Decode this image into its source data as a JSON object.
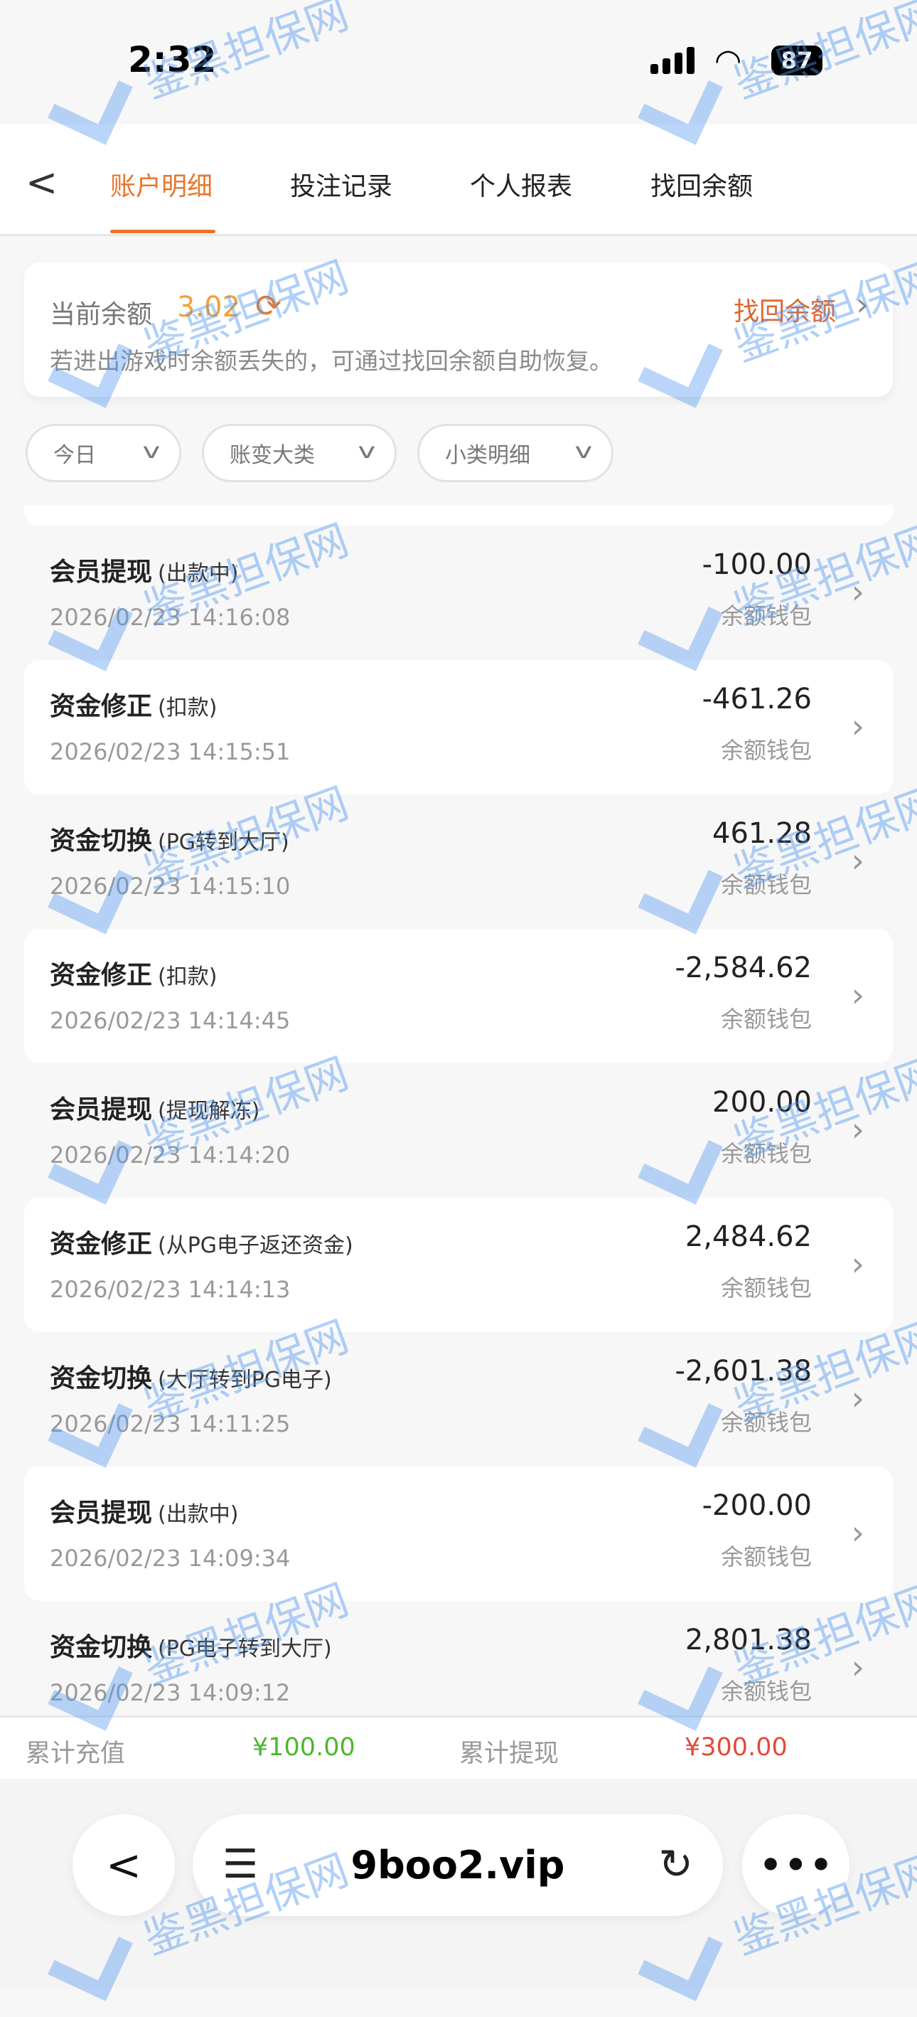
{
  "status_bar": {
    "time": "2:32",
    "battery": "87"
  },
  "tabs": {
    "back_icon": "chevron-left-icon",
    "items": [
      {
        "label": "账户明细",
        "active": true
      },
      {
        "label": "投注记录"
      },
      {
        "label": "个人报表"
      },
      {
        "label": "找回余额"
      }
    ],
    "accent": "#e8762d"
  },
  "balance": {
    "label": "当前余额",
    "value": "3.02",
    "recover_label": "找回余额",
    "tip": "若进出游戏时余额丢失的，可通过找回余额自助恢复。"
  },
  "filters": [
    {
      "label": "今日"
    },
    {
      "label": "账变大类"
    },
    {
      "label": "小类明细"
    }
  ],
  "records": [
    {
      "title": "会员提现",
      "sub": "(出款中)",
      "date": "2026/02/23 14:16:08",
      "amount": "-100.00",
      "wallet": "余额钱包"
    },
    {
      "title": "资金修正",
      "sub": "(扣款)",
      "date": "2026/02/23 14:15:51",
      "amount": "-461.26",
      "wallet": "余额钱包"
    },
    {
      "title": "资金切换",
      "sub": "(PG转到大厅)",
      "date": "2026/02/23 14:15:10",
      "amount": "461.28",
      "wallet": "余额钱包"
    },
    {
      "title": "资金修正",
      "sub": "(扣款)",
      "date": "2026/02/23 14:14:45",
      "amount": "-2,584.62",
      "wallet": "余额钱包"
    },
    {
      "title": "会员提现",
      "sub": "(提现解冻)",
      "date": "2026/02/23 14:14:20",
      "amount": "200.00",
      "wallet": "余额钱包"
    },
    {
      "title": "资金修正",
      "sub": "(从PG电子返还资金)",
      "date": "2026/02/23 14:14:13",
      "amount": "2,484.62",
      "wallet": "余额钱包"
    },
    {
      "title": "资金切换",
      "sub": "(大厅转到PG电子)",
      "date": "2026/02/23 14:11:25",
      "amount": "-2,601.38",
      "wallet": "余额钱包"
    },
    {
      "title": "会员提现",
      "sub": "(出款中)",
      "date": "2026/02/23 14:09:34",
      "amount": "-200.00",
      "wallet": "余额钱包"
    },
    {
      "title": "资金切换",
      "sub": "(PG电子转到大厅)",
      "date": "2026/02/23 14:09:12",
      "amount": "2,801.38",
      "wallet": "余额钱包"
    }
  ],
  "summary": {
    "recharge_label": "累计充值",
    "recharge_value": "¥100.00",
    "recharge_color": "#4cb632",
    "withdraw_label": "累计提现",
    "withdraw_value": "¥300.00",
    "withdraw_color": "#e04b3a"
  },
  "browser": {
    "url": "9boo2.vip"
  },
  "watermark": "鉴黑担保网"
}
